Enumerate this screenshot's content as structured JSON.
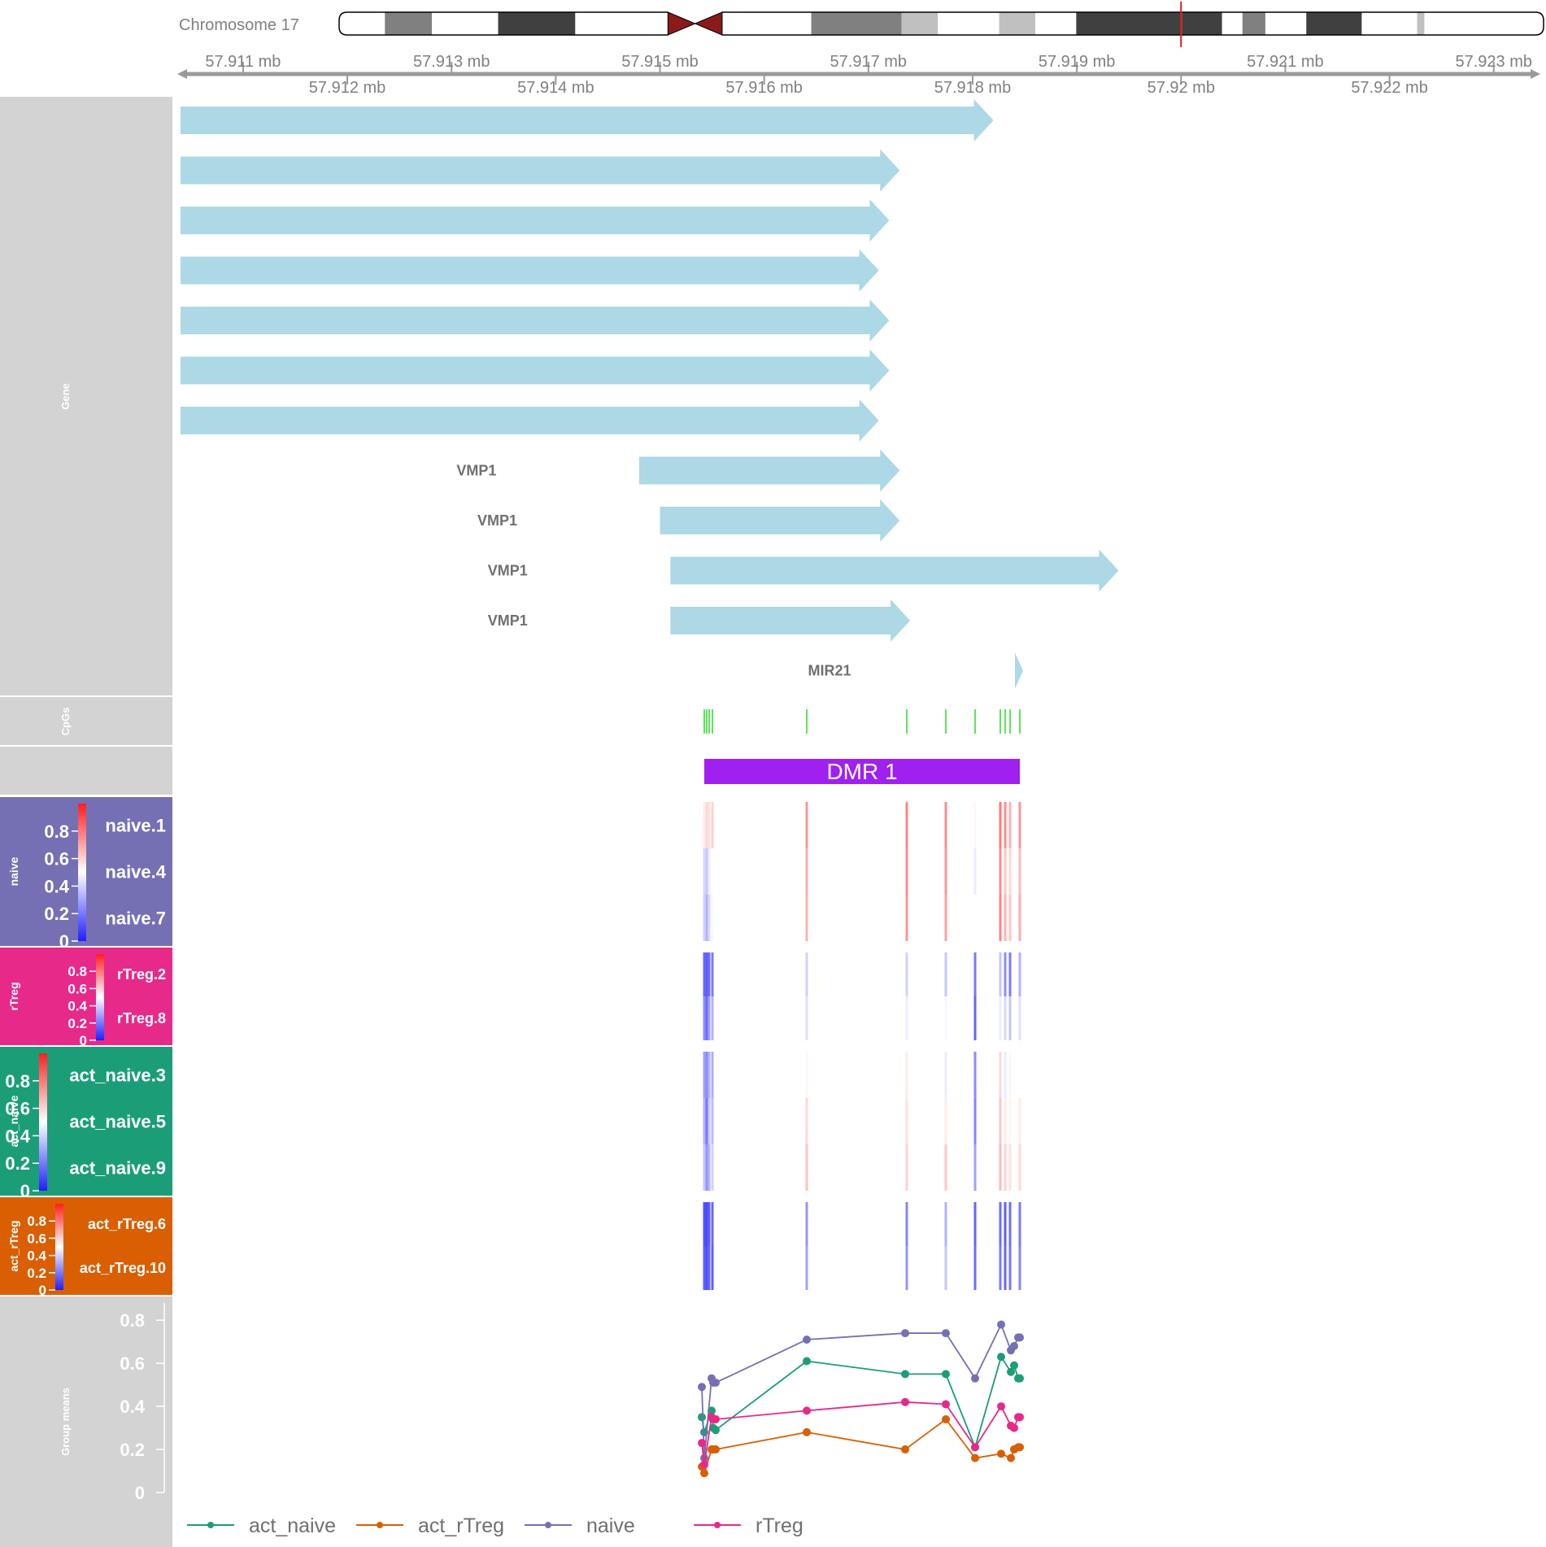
{
  "ideogram": {
    "chromosome_label": "Chromosome 17",
    "bands": [
      {
        "start": 0.0,
        "end": 0.038,
        "stain": "white"
      },
      {
        "start": 0.038,
        "end": 0.077,
        "stain": "#808080"
      },
      {
        "start": 0.077,
        "end": 0.132,
        "stain": "white"
      },
      {
        "start": 0.132,
        "end": 0.196,
        "stain": "#404040"
      },
      {
        "start": 0.196,
        "end": 0.273,
        "stain": "white"
      },
      {
        "start": 0.273,
        "end": 0.318,
        "stain": "centromere"
      },
      {
        "start": 0.318,
        "end": 0.392,
        "stain": "white"
      },
      {
        "start": 0.392,
        "end": 0.467,
        "stain": "#808080"
      },
      {
        "start": 0.467,
        "end": 0.497,
        "stain": "#c0c0c0"
      },
      {
        "start": 0.497,
        "end": 0.548,
        "stain": "white"
      },
      {
        "start": 0.548,
        "end": 0.578,
        "stain": "#c0c0c0"
      },
      {
        "start": 0.578,
        "end": 0.612,
        "stain": "white"
      },
      {
        "start": 0.612,
        "end": 0.7,
        "stain": "#404040"
      },
      {
        "start": 0.7,
        "end": 0.733,
        "stain": "#404040"
      },
      {
        "start": 0.733,
        "end": 0.75,
        "stain": "white"
      },
      {
        "start": 0.75,
        "end": 0.769,
        "stain": "#808080"
      },
      {
        "start": 0.769,
        "end": 0.803,
        "stain": "white"
      },
      {
        "start": 0.803,
        "end": 0.849,
        "stain": "#404040"
      },
      {
        "start": 0.849,
        "end": 0.895,
        "stain": "white"
      },
      {
        "start": 0.895,
        "end": 0.901,
        "stain": "#c0c0c0"
      },
      {
        "start": 0.901,
        "end": 1.0,
        "stain": "white"
      }
    ],
    "highlight_fraction": 0.699,
    "highlight_color": "#e31a1c"
  },
  "axis": {
    "upper_labels": [
      "57.911 mb",
      "57.913 mb",
      "57.915 mb",
      "57.917 mb",
      "57.919 mb",
      "57.921 mb",
      "57.923 mb"
    ],
    "upper_positions": [
      57.911,
      57.913,
      57.915,
      57.917,
      57.919,
      57.921,
      57.923
    ],
    "lower_labels": [
      "57.912 mb",
      "57.914 mb",
      "57.916 mb",
      "57.918 mb",
      "57.92 mb",
      "57.922 mb"
    ],
    "lower_positions": [
      57.912,
      57.914,
      57.916,
      57.918,
      57.92,
      57.922
    ],
    "range_mb": [
      57.9104,
      57.9234
    ]
  },
  "tracks": {
    "gene": {
      "title": "Gene",
      "color": "#add8e6",
      "transcripts": [
        {
          "label": "",
          "start": 57.9104,
          "end": 57.9182
        },
        {
          "label": "",
          "start": 57.9104,
          "end": 57.9173
        },
        {
          "label": "",
          "start": 57.9104,
          "end": 57.9172
        },
        {
          "label": "",
          "start": 57.9104,
          "end": 57.9171
        },
        {
          "label": "",
          "start": 57.9104,
          "end": 57.9172
        },
        {
          "label": "",
          "start": 57.9104,
          "end": 57.9172
        },
        {
          "label": "",
          "start": 57.9104,
          "end": 57.9171
        },
        {
          "label": "VMP1",
          "start": 57.9148,
          "end": 57.9173
        },
        {
          "label": "VMP1",
          "start": 57.915,
          "end": 57.9173
        },
        {
          "label": "VMP1",
          "start": 57.9151,
          "end": 57.9194
        },
        {
          "label": "VMP1",
          "start": 57.9151,
          "end": 57.9174
        },
        {
          "label": "MIR21",
          "start": 57.9185,
          "end": 57.9186
        }
      ]
    },
    "cpgs": {
      "title": "CpGs",
      "color": "#33dd33",
      "positions": [
        57.91561,
        57.91564,
        57.91566,
        57.91568,
        57.91659,
        57.91752,
        57.91787,
        57.91814,
        57.91835,
        57.91842,
        57.91845,
        57.91848
      ]
    },
    "dmr": {
      "label": "DMR  1",
      "color": "#a020f0",
      "start": 57.91559,
      "end": 57.9185
    },
    "heatmaps": [
      {
        "title": "naive",
        "panel_color": "#7570b3",
        "samples": [
          "naive.1",
          "naive.4",
          "naive.7"
        ],
        "scale_ticks": [
          "0.8",
          "0.6",
          "0.4",
          "0.2",
          "0"
        ],
        "values": [
          [
            0.55,
            0.6,
            0.58,
            0.62,
            0.78,
            0.82,
            0.8,
            0.52,
            0.85,
            0.8,
            0.7,
            0.78
          ],
          [
            0.4,
            0.35,
            0.45,
            0.5,
            0.72,
            0.8,
            0.78,
            0.45,
            0.8,
            0.65,
            0.6,
            0.68
          ],
          [
            0.38,
            0.3,
            0.4,
            0.48,
            0.7,
            0.78,
            0.75,
            0.5,
            0.82,
            0.7,
            0.65,
            0.72
          ]
        ]
      },
      {
        "title": "rTreg",
        "panel_color": "#e7298a",
        "samples": [
          "rTreg.2",
          "rTreg.8"
        ],
        "scale_ticks": [
          "0.8",
          "0.6",
          "0.4",
          "0.2",
          "0"
        ],
        "values": [
          [
            0.1,
            0.08,
            0.12,
            0.15,
            0.38,
            0.38,
            0.35,
            0.15,
            0.35,
            0.2,
            0.15,
            0.3
          ],
          [
            0.2,
            0.12,
            0.25,
            0.3,
            0.42,
            0.45,
            0.48,
            0.1,
            0.45,
            0.4,
            0.35,
            0.42
          ]
        ]
      },
      {
        "title": "act_naive",
        "panel_color": "#1b9e77",
        "samples": [
          "act_naive.3",
          "act_naive.5",
          "act_naive.9"
        ],
        "scale_ticks": [
          "0.8",
          "0.6",
          "0.4",
          "0.2",
          "0"
        ],
        "values": [
          [
            0.25,
            0.2,
            0.3,
            0.28,
            0.52,
            0.55,
            0.45,
            0.2,
            0.6,
            0.45,
            0.48,
            0.5
          ],
          [
            0.3,
            0.15,
            0.35,
            0.32,
            0.6,
            0.58,
            0.55,
            0.18,
            0.65,
            0.55,
            0.52,
            0.55
          ],
          [
            0.35,
            0.22,
            0.3,
            0.38,
            0.66,
            0.62,
            0.65,
            0.25,
            0.68,
            0.62,
            0.58,
            0.6
          ]
        ]
      },
      {
        "title": "act_rTreg",
        "panel_color": "#d95f02",
        "samples": [
          "act_rTreg.6",
          "act_rTreg.10"
        ],
        "scale_ticks": [
          "0.8",
          "0.6",
          "0.4",
          "0.2",
          "0"
        ],
        "values": [
          [
            0.05,
            0.03,
            0.08,
            0.1,
            0.22,
            0.18,
            0.3,
            0.1,
            0.12,
            0.08,
            0.12,
            0.15
          ],
          [
            0.08,
            0.05,
            0.1,
            0.08,
            0.25,
            0.22,
            0.35,
            0.12,
            0.15,
            0.1,
            0.14,
            0.18
          ]
        ]
      }
    ],
    "group_means": {
      "title": "Group means",
      "y_ticks": [
        "0.8",
        "0.6",
        "0.4",
        "0.2",
        "0"
      ],
      "y_values": [
        0.8,
        0.6,
        0.4,
        0.2,
        0
      ],
      "ylim": [
        0,
        0.88
      ]
    }
  },
  "chart_data": {
    "type": "line",
    "title": "",
    "xlabel": "",
    "ylabel": "",
    "ylim": [
      0,
      0.88
    ],
    "x": [
      57.91559,
      57.91561,
      57.91564,
      57.91566,
      57.91568,
      57.91659,
      57.91752,
      57.91787,
      57.91814,
      57.91835,
      57.91842,
      57.91845,
      57.91848,
      57.9185
    ],
    "series": [
      {
        "name": "act_naive",
        "color": "#1b9e77",
        "values": [
          0.35,
          0.28,
          0.38,
          0.3,
          0.29,
          0.61,
          0.55,
          0.55,
          0.21,
          0.63,
          0.56,
          0.59,
          0.53,
          0.53
        ]
      },
      {
        "name": "act_rTreg",
        "color": "#d95f02",
        "values": [
          0.12,
          0.09,
          0.2,
          0.2,
          0.2,
          0.28,
          0.2,
          0.34,
          0.16,
          0.18,
          0.16,
          0.2,
          0.21,
          0.21
        ]
      },
      {
        "name": "naive",
        "color": "#7570b3",
        "values": [
          0.49,
          0.16,
          0.53,
          0.51,
          0.51,
          0.71,
          0.74,
          0.74,
          0.53,
          0.78,
          0.66,
          0.68,
          0.72,
          0.72
        ]
      },
      {
        "name": "rTreg",
        "color": "#e7298a",
        "values": [
          0.23,
          0.13,
          0.35,
          0.34,
          0.34,
          0.38,
          0.42,
          0.41,
          0.21,
          0.4,
          0.31,
          0.3,
          0.35,
          0.35
        ]
      }
    ],
    "legend_position": "bottom"
  }
}
